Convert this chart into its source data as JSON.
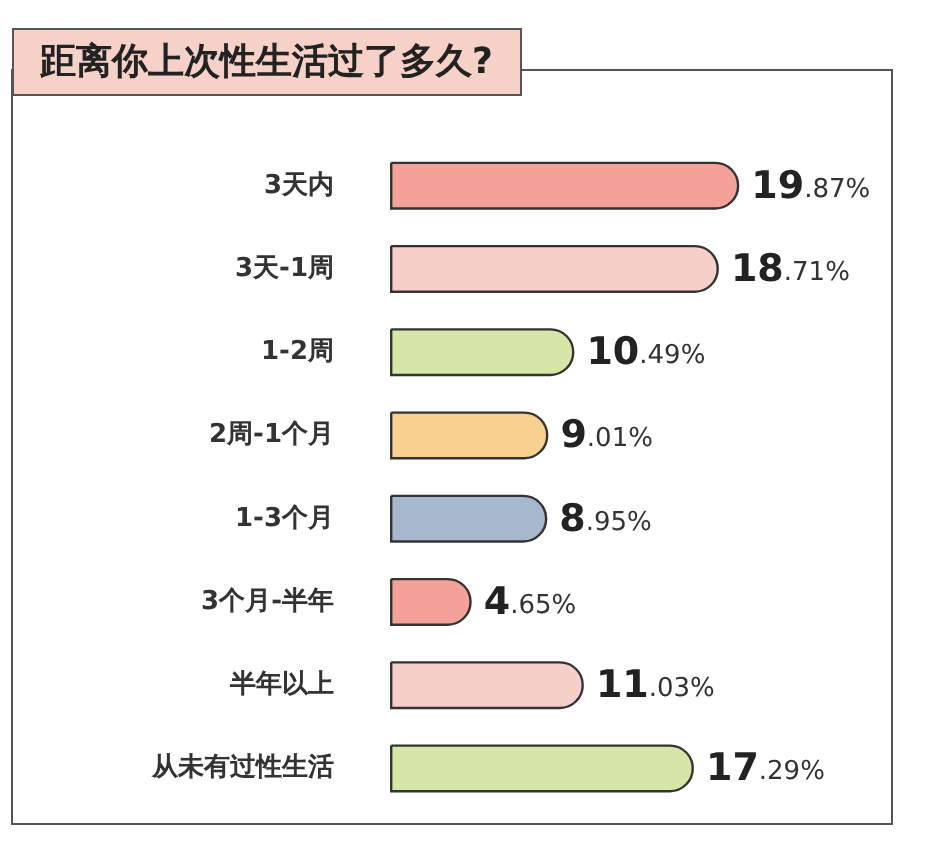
{
  "chart_data": {
    "type": "bar",
    "orientation": "horizontal",
    "title": "距离你上次性生活过了多久?",
    "categories": [
      "3天内",
      "3天-1周",
      "1-2周",
      "2周-1个月",
      "1-3个月",
      "3个月-半年",
      "半年以上",
      "从未有过性生活"
    ],
    "values": [
      19.87,
      18.71,
      10.49,
      9.01,
      8.95,
      4.65,
      11.03,
      17.29
    ],
    "value_labels": [
      "19.87%",
      "18.71%",
      "10.49%",
      "9.01%",
      "8.95%",
      "4.65%",
      "11.03%",
      "17.29%"
    ],
    "colors": [
      "#f4a19a",
      "#f6cfc8",
      "#d6e6a6",
      "#f8d08f",
      "#a7b7cc",
      "#f4a19a",
      "#f6cfc8",
      "#d6e6a6"
    ]
  }
}
